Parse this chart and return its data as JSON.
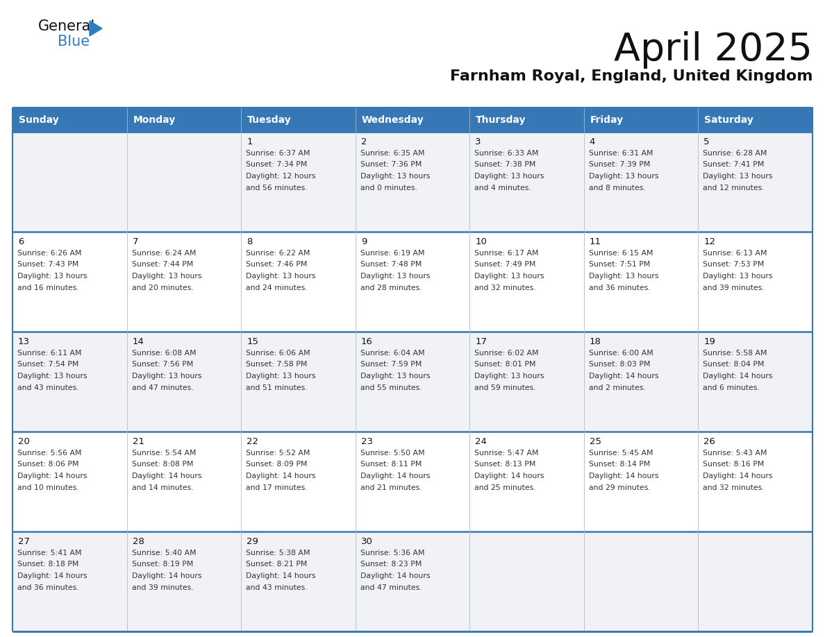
{
  "title": "April 2025",
  "subtitle": "Farnham Royal, England, United Kingdom",
  "days_of_week": [
    "Sunday",
    "Monday",
    "Tuesday",
    "Wednesday",
    "Thursday",
    "Friday",
    "Saturday"
  ],
  "header_bg": "#3578b5",
  "header_text_color": "#ffffff",
  "row_bg_white": "#ffffff",
  "row_bg_gray": "#f0f2f5",
  "border_color": "#3578b5",
  "day_number_color": "#111111",
  "cell_text_color": "#333333",
  "title_color": "#111111",
  "subtitle_color": "#111111",
  "logo_general_color": "#111111",
  "logo_blue_color": "#2e7fc1",
  "logo_triangle_color": "#2e7fc1",
  "calendar": [
    [
      {
        "day": null,
        "info": null
      },
      {
        "day": null,
        "info": null
      },
      {
        "day": 1,
        "info": "Sunrise: 6:37 AM\nSunset: 7:34 PM\nDaylight: 12 hours\nand 56 minutes."
      },
      {
        "day": 2,
        "info": "Sunrise: 6:35 AM\nSunset: 7:36 PM\nDaylight: 13 hours\nand 0 minutes."
      },
      {
        "day": 3,
        "info": "Sunrise: 6:33 AM\nSunset: 7:38 PM\nDaylight: 13 hours\nand 4 minutes."
      },
      {
        "day": 4,
        "info": "Sunrise: 6:31 AM\nSunset: 7:39 PM\nDaylight: 13 hours\nand 8 minutes."
      },
      {
        "day": 5,
        "info": "Sunrise: 6:28 AM\nSunset: 7:41 PM\nDaylight: 13 hours\nand 12 minutes."
      }
    ],
    [
      {
        "day": 6,
        "info": "Sunrise: 6:26 AM\nSunset: 7:43 PM\nDaylight: 13 hours\nand 16 minutes."
      },
      {
        "day": 7,
        "info": "Sunrise: 6:24 AM\nSunset: 7:44 PM\nDaylight: 13 hours\nand 20 minutes."
      },
      {
        "day": 8,
        "info": "Sunrise: 6:22 AM\nSunset: 7:46 PM\nDaylight: 13 hours\nand 24 minutes."
      },
      {
        "day": 9,
        "info": "Sunrise: 6:19 AM\nSunset: 7:48 PM\nDaylight: 13 hours\nand 28 minutes."
      },
      {
        "day": 10,
        "info": "Sunrise: 6:17 AM\nSunset: 7:49 PM\nDaylight: 13 hours\nand 32 minutes."
      },
      {
        "day": 11,
        "info": "Sunrise: 6:15 AM\nSunset: 7:51 PM\nDaylight: 13 hours\nand 36 minutes."
      },
      {
        "day": 12,
        "info": "Sunrise: 6:13 AM\nSunset: 7:53 PM\nDaylight: 13 hours\nand 39 minutes."
      }
    ],
    [
      {
        "day": 13,
        "info": "Sunrise: 6:11 AM\nSunset: 7:54 PM\nDaylight: 13 hours\nand 43 minutes."
      },
      {
        "day": 14,
        "info": "Sunrise: 6:08 AM\nSunset: 7:56 PM\nDaylight: 13 hours\nand 47 minutes."
      },
      {
        "day": 15,
        "info": "Sunrise: 6:06 AM\nSunset: 7:58 PM\nDaylight: 13 hours\nand 51 minutes."
      },
      {
        "day": 16,
        "info": "Sunrise: 6:04 AM\nSunset: 7:59 PM\nDaylight: 13 hours\nand 55 minutes."
      },
      {
        "day": 17,
        "info": "Sunrise: 6:02 AM\nSunset: 8:01 PM\nDaylight: 13 hours\nand 59 minutes."
      },
      {
        "day": 18,
        "info": "Sunrise: 6:00 AM\nSunset: 8:03 PM\nDaylight: 14 hours\nand 2 minutes."
      },
      {
        "day": 19,
        "info": "Sunrise: 5:58 AM\nSunset: 8:04 PM\nDaylight: 14 hours\nand 6 minutes."
      }
    ],
    [
      {
        "day": 20,
        "info": "Sunrise: 5:56 AM\nSunset: 8:06 PM\nDaylight: 14 hours\nand 10 minutes."
      },
      {
        "day": 21,
        "info": "Sunrise: 5:54 AM\nSunset: 8:08 PM\nDaylight: 14 hours\nand 14 minutes."
      },
      {
        "day": 22,
        "info": "Sunrise: 5:52 AM\nSunset: 8:09 PM\nDaylight: 14 hours\nand 17 minutes."
      },
      {
        "day": 23,
        "info": "Sunrise: 5:50 AM\nSunset: 8:11 PM\nDaylight: 14 hours\nand 21 minutes."
      },
      {
        "day": 24,
        "info": "Sunrise: 5:47 AM\nSunset: 8:13 PM\nDaylight: 14 hours\nand 25 minutes."
      },
      {
        "day": 25,
        "info": "Sunrise: 5:45 AM\nSunset: 8:14 PM\nDaylight: 14 hours\nand 29 minutes."
      },
      {
        "day": 26,
        "info": "Sunrise: 5:43 AM\nSunset: 8:16 PM\nDaylight: 14 hours\nand 32 minutes."
      }
    ],
    [
      {
        "day": 27,
        "info": "Sunrise: 5:41 AM\nSunset: 8:18 PM\nDaylight: 14 hours\nand 36 minutes."
      },
      {
        "day": 28,
        "info": "Sunrise: 5:40 AM\nSunset: 8:19 PM\nDaylight: 14 hours\nand 39 minutes."
      },
      {
        "day": 29,
        "info": "Sunrise: 5:38 AM\nSunset: 8:21 PM\nDaylight: 14 hours\nand 43 minutes."
      },
      {
        "day": 30,
        "info": "Sunrise: 5:36 AM\nSunset: 8:23 PM\nDaylight: 14 hours\nand 47 minutes."
      },
      {
        "day": null,
        "info": null
      },
      {
        "day": null,
        "info": null
      },
      {
        "day": null,
        "info": null
      }
    ]
  ]
}
